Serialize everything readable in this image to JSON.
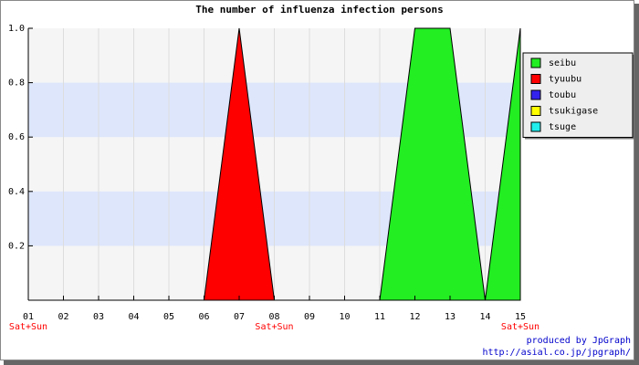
{
  "chart_data": {
    "type": "area",
    "title": "The number of influenza infection persons",
    "categories": [
      "01",
      "02",
      "03",
      "04",
      "05",
      "06",
      "07",
      "08",
      "09",
      "10",
      "11",
      "12",
      "13",
      "14",
      "15"
    ],
    "weekend_labels": [
      "Sat+Sun",
      null,
      null,
      null,
      null,
      null,
      null,
      "Sat+Sun",
      null,
      null,
      null,
      null,
      null,
      null,
      "Sat+Sun"
    ],
    "series": [
      {
        "name": "seibu",
        "color": "#22ee22",
        "values": [
          0,
          0,
          0,
          0,
          0,
          0,
          0,
          0,
          0,
          0,
          0,
          1,
          1,
          0,
          1
        ]
      },
      {
        "name": "tyuubu",
        "color": "#ff0000",
        "values": [
          0,
          0,
          0,
          0,
          0,
          0,
          1,
          0,
          0,
          0,
          0,
          0,
          0,
          0,
          0
        ]
      },
      {
        "name": "toubu",
        "color": "#3322ee",
        "values": [
          0,
          0,
          0,
          0,
          0,
          0,
          0,
          0,
          0,
          0,
          0,
          0,
          0,
          0,
          0
        ]
      },
      {
        "name": "tsukigase",
        "color": "#ffff00",
        "values": [
          0,
          0,
          0,
          0,
          0,
          0,
          0,
          0,
          0,
          0,
          0,
          0,
          0,
          0,
          0
        ]
      },
      {
        "name": "tsuge",
        "color": "#22eeee",
        "values": [
          0,
          0,
          0,
          0,
          0,
          0,
          0,
          0,
          0,
          0,
          0,
          0,
          0,
          0,
          0
        ]
      }
    ],
    "ylim": [
      0,
      1
    ],
    "yticks": [
      0.2,
      0.4,
      0.6,
      0.8,
      {
        "value": 1,
        "label": "1.0"
      }
    ],
    "grid": true,
    "legend": "top-right",
    "credits": [
      "produced by JpGraph",
      "http://asial.co.jp/jpgraph/"
    ]
  }
}
